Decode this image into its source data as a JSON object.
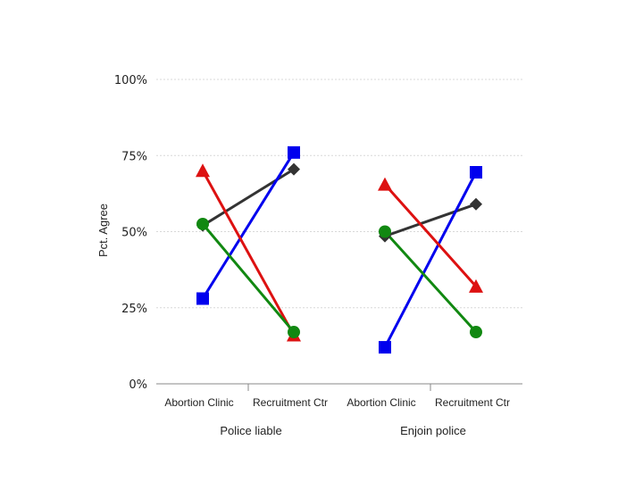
{
  "chart_data": {
    "type": "line",
    "ylabel": "Pct. Agree",
    "yticks": [
      "0%",
      "25%",
      "50%",
      "75%",
      "100%"
    ],
    "ylim": [
      0,
      100
    ],
    "grid": true,
    "panels": [
      {
        "group_label": "Police liable",
        "categories": [
          "Abortion Clinic",
          "Recruitment Ctr"
        ],
        "series": [
          {
            "marker": "diamond",
            "color": "#333333",
            "values": [
              52,
              70.5
            ]
          },
          {
            "marker": "square",
            "color": "#0000ee",
            "values": [
              28,
              76
            ]
          },
          {
            "marker": "triangle",
            "color": "#dd1111",
            "values": [
              70,
              16
            ]
          },
          {
            "marker": "circle",
            "color": "#118811",
            "values": [
              52.5,
              17
            ]
          }
        ]
      },
      {
        "group_label": "Enjoin police",
        "categories": [
          "Abortion Clinic",
          "Recruitment Ctr"
        ],
        "series": [
          {
            "marker": "diamond",
            "color": "#333333",
            "values": [
              48.5,
              59
            ]
          },
          {
            "marker": "square",
            "color": "#0000ee",
            "values": [
              12,
              69.5
            ]
          },
          {
            "marker": "triangle",
            "color": "#dd1111",
            "values": [
              65.5,
              32
            ]
          },
          {
            "marker": "circle",
            "color": "#118811",
            "values": [
              50,
              17
            ]
          }
        ]
      }
    ]
  }
}
